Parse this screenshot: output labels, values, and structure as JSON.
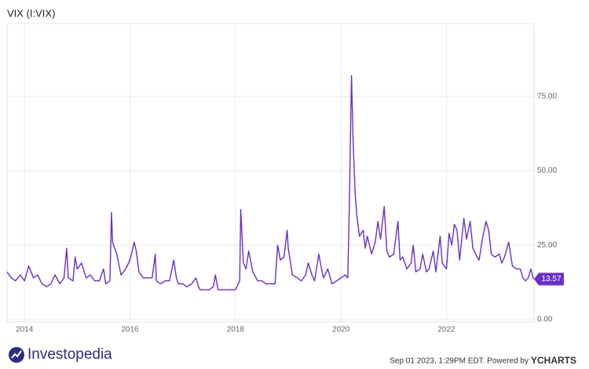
{
  "chart_data": {
    "type": "line",
    "title": "VIX (I:VIX)",
    "x": [
      2013.67,
      2013.75,
      2013.83,
      2013.92,
      2014.0,
      2014.08,
      2014.17,
      2014.25,
      2014.33,
      2014.42,
      2014.5,
      2014.58,
      2014.67,
      2014.75,
      2014.8,
      2014.83,
      2014.92,
      2014.96,
      2015.0,
      2015.08,
      2015.17,
      2015.25,
      2015.33,
      2015.42,
      2015.5,
      2015.54,
      2015.62,
      2015.65,
      2015.67,
      2015.75,
      2015.83,
      2015.92,
      2016.0,
      2016.08,
      2016.12,
      2016.17,
      2016.25,
      2016.33,
      2016.42,
      2016.48,
      2016.5,
      2016.58,
      2016.67,
      2016.75,
      2016.83,
      2016.88,
      2016.92,
      2017.0,
      2017.08,
      2017.17,
      2017.25,
      2017.3,
      2017.33,
      2017.42,
      2017.5,
      2017.58,
      2017.62,
      2017.67,
      2017.75,
      2017.83,
      2017.92,
      2018.0,
      2018.08,
      2018.1,
      2018.15,
      2018.2,
      2018.25,
      2018.33,
      2018.42,
      2018.5,
      2018.58,
      2018.67,
      2018.75,
      2018.8,
      2018.85,
      2018.92,
      2018.98,
      2019.0,
      2019.08,
      2019.17,
      2019.25,
      2019.33,
      2019.38,
      2019.45,
      2019.5,
      2019.58,
      2019.62,
      2019.67,
      2019.75,
      2019.83,
      2019.92,
      2020.0,
      2020.08,
      2020.13,
      2020.16,
      2020.2,
      2020.23,
      2020.27,
      2020.3,
      2020.35,
      2020.42,
      2020.46,
      2020.5,
      2020.58,
      2020.65,
      2020.7,
      2020.75,
      2020.82,
      2020.87,
      2020.92,
      2021.0,
      2021.08,
      2021.12,
      2021.17,
      2021.25,
      2021.33,
      2021.37,
      2021.42,
      2021.5,
      2021.55,
      2021.62,
      2021.67,
      2021.75,
      2021.8,
      2021.88,
      2021.92,
      2022.0,
      2022.05,
      2022.1,
      2022.15,
      2022.2,
      2022.25,
      2022.33,
      2022.38,
      2022.45,
      2022.5,
      2022.58,
      2022.62,
      2022.67,
      2022.75,
      2022.8,
      2022.85,
      2022.92,
      2023.0,
      2023.05,
      2023.1,
      2023.18,
      2023.25,
      2023.33,
      2023.4,
      2023.45,
      2023.5,
      2023.55,
      2023.6,
      2023.65
    ],
    "series": [
      {
        "name": "VIX",
        "color": "#6a2fc7",
        "values": [
          16,
          14,
          13,
          15,
          13,
          18,
          14,
          15,
          12,
          11,
          12,
          15,
          12,
          14,
          24,
          14,
          13,
          21,
          17,
          19,
          14,
          15,
          13,
          13,
          17,
          12,
          13,
          36,
          26,
          22,
          15,
          17,
          20,
          26,
          23,
          16,
          14,
          14,
          14,
          22,
          13,
          12,
          13,
          13,
          20,
          14,
          12,
          12,
          11,
          12,
          14,
          11,
          10,
          10,
          10,
          11,
          15,
          10,
          10,
          10,
          10,
          10,
          13,
          37,
          19,
          17,
          23,
          16,
          13,
          13,
          12,
          12,
          12,
          25,
          20,
          21,
          30,
          24,
          15,
          14,
          13,
          15,
          19,
          15,
          13,
          22,
          18,
          14,
          17,
          12,
          13,
          14,
          15,
          14,
          40,
          82,
          60,
          42,
          35,
          28,
          30,
          24,
          28,
          22,
          26,
          33,
          27,
          38,
          23,
          21,
          22,
          33,
          20,
          21,
          17,
          19,
          25,
          16,
          17,
          22,
          16,
          17,
          23,
          16,
          28,
          19,
          17,
          29,
          25,
          32,
          30,
          20,
          34,
          27,
          33,
          24,
          21,
          20,
          26,
          33,
          30,
          22,
          21,
          22,
          19,
          21,
          26,
          18,
          17,
          17,
          14,
          13,
          14,
          17,
          13.57
        ]
      }
    ],
    "xlim": [
      2013.67,
      2023.66
    ],
    "xticks": [
      2014,
      2016,
      2018,
      2020,
      2022
    ],
    "ylim": [
      -0.8,
      99.5
    ],
    "yticks": [
      {
        "value": 0,
        "label": "0.00"
      },
      {
        "value": 25,
        "label": "25.00"
      },
      {
        "value": 50,
        "label": "50.00"
      },
      {
        "value": 75,
        "label": "75.00"
      }
    ],
    "grid": true
  },
  "footer": {
    "brand": "Investopedia",
    "timestamp": "Sep 01 2023, 1:29PM EDT. Powered by",
    "provider": "YCHARTS"
  }
}
